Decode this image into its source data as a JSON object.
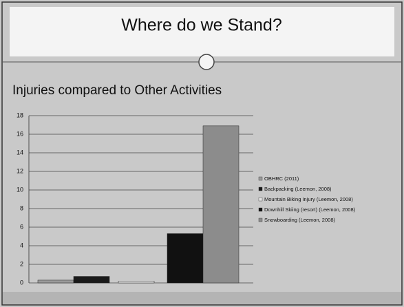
{
  "header": {
    "title": "Where do we Stand?"
  },
  "chart_data": {
    "type": "bar",
    "title": "Injuries compared to Other Activities",
    "categories": [
      null
    ],
    "series": [
      {
        "name": "OBHRC (2011)",
        "color": "#9a9a9a",
        "values": [
          0.3
        ]
      },
      {
        "name": "Backpacking (Leemon, 2008)",
        "color": "#1a1a1a",
        "values": [
          0.7
        ]
      },
      {
        "name": "Mountain Biking Injury (Leemon, 2008)",
        "color": "#e6e6e6",
        "values": [
          0.2
        ]
      },
      {
        "name": "Downhill Skiing (resort) (Leemon, 2008)",
        "color": "#111111",
        "values": [
          5.3
        ]
      },
      {
        "name": "Snowboarding (Leemon, 2008)",
        "color": "#8c8c8c",
        "values": [
          16.9
        ]
      }
    ],
    "ylim": [
      0,
      18
    ],
    "yticks": [
      0,
      2,
      4,
      6,
      8,
      10,
      12,
      14,
      16,
      18
    ],
    "grid": true,
    "legend": "right"
  }
}
